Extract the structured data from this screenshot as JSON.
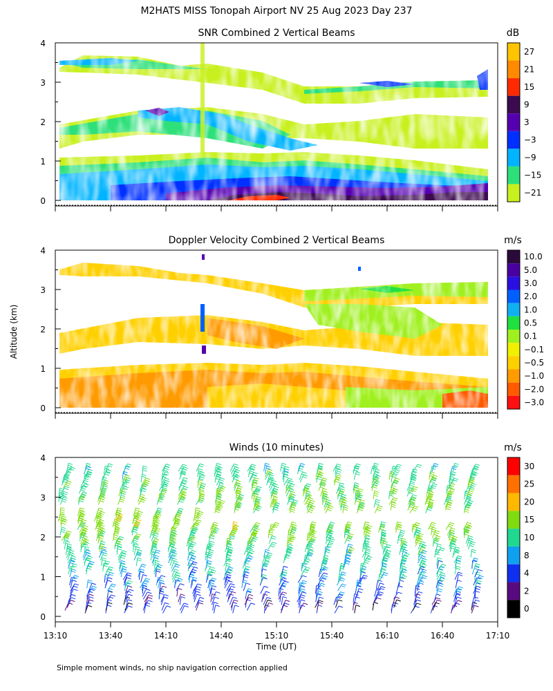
{
  "figure": {
    "title": "M2HATS MISS Tonopah Airport NV  25 Aug 2023 Day 237",
    "shared_ylabel": "Altitude (km)",
    "xlabel": "Time (UT)",
    "footnote": "Simple moment winds, no ship navigation correction applied",
    "time_ticks": [
      "13:10",
      "13:40",
      "14:10",
      "14:40",
      "15:10",
      "15:40",
      "16:10",
      "16:40",
      "17:10"
    ],
    "altitude_ticks": [
      "0",
      "1",
      "2",
      "3",
      "4"
    ]
  },
  "chart_data": [
    {
      "type": "heatmap",
      "title": "SNR Combined 2 Vertical Beams",
      "ylabel": "Altitude (km)",
      "colorbar_unit": "dB",
      "colorbar_labels": [
        "27",
        "21",
        "15",
        "9",
        "3",
        "−3",
        "−9",
        "−15",
        "−21"
      ],
      "colorbar_colors": [
        "#ffc400",
        "#ff8a00",
        "#ff2a00",
        "#3c0a4f",
        "#5500b0",
        "#0030ff",
        "#00b4ff",
        "#2ee07a",
        "#c8f01e"
      ],
      "x_range": [
        "13:10",
        "17:10"
      ],
      "ylim": [
        0,
        4
      ],
      "layers": [
        {
          "label": "boundary layer",
          "altitude_km": [
            0.1,
            0.4
          ],
          "level_dB": 9
        },
        {
          "label": "lower layer",
          "altitude_km": [
            0.4,
            1.1
          ],
          "level_dB": -9
        },
        {
          "label": "mid layer",
          "altitude_km": [
            1.7,
            2.3
          ],
          "level_dB": -15
        },
        {
          "label": "upper layer",
          "altitude_km": [
            2.8,
            3.6
          ],
          "level_dB": -15
        }
      ]
    },
    {
      "type": "heatmap",
      "title": "Doppler Velocity Combined 2 Vertical Beams",
      "ylabel": "Altitude (km)",
      "colorbar_unit": "m/s",
      "colorbar_labels": [
        "10.0",
        "5.0",
        "3.0",
        "2.0",
        "1.0",
        "0.5",
        "0.1",
        "−0.1",
        "−0.5",
        "−1.0",
        "−2.0",
        "−3.0"
      ],
      "colorbar_colors": [
        "#2a0a3a",
        "#4a00a0",
        "#2a10e0",
        "#0060ff",
        "#10b0f0",
        "#20e040",
        "#a0f020",
        "#f0f000",
        "#ffd000",
        "#ff9a00",
        "#ff5a00",
        "#ff1010"
      ],
      "x_range": [
        "13:10",
        "17:10"
      ],
      "ylim": [
        0,
        4
      ],
      "layers": [
        {
          "label": "lower layer",
          "altitude_km": [
            0.1,
            1.1
          ],
          "level_ms": -0.5
        },
        {
          "label": "mid layer",
          "altitude_km": [
            1.5,
            2.3
          ],
          "level_ms": -0.1
        },
        {
          "label": "upper layer",
          "altitude_km": [
            2.7,
            3.6
          ],
          "level_ms": 0.1
        }
      ]
    },
    {
      "type": "scatter",
      "title": "Winds (10 minutes)",
      "ylabel": "Altitude (km)",
      "colorbar_unit": "m/s",
      "colorbar_labels": [
        "30",
        "25",
        "20",
        "15",
        "10",
        "8",
        "4",
        "2",
        "0"
      ],
      "colorbar_colors": [
        "#ff0000",
        "#ff7000",
        "#ffb800",
        "#80dc10",
        "#20d890",
        "#10a0f0",
        "#1030f0",
        "#5a0a80",
        "#000000"
      ],
      "x_range": [
        "13:10",
        "17:10"
      ],
      "ylim": [
        0,
        4
      ],
      "barb_interval_minutes": 10,
      "speed_profile": [
        {
          "altitude_km": 0.2,
          "speed_ms": 4
        },
        {
          "altitude_km": 0.8,
          "speed_ms": 8
        },
        {
          "altitude_km": 1.5,
          "speed_ms": 12
        },
        {
          "altitude_km": 2.3,
          "speed_ms": 18
        },
        {
          "altitude_km": 3.0,
          "speed_ms": 15
        },
        {
          "altitude_km": 3.6,
          "speed_ms": 12
        }
      ]
    }
  ]
}
